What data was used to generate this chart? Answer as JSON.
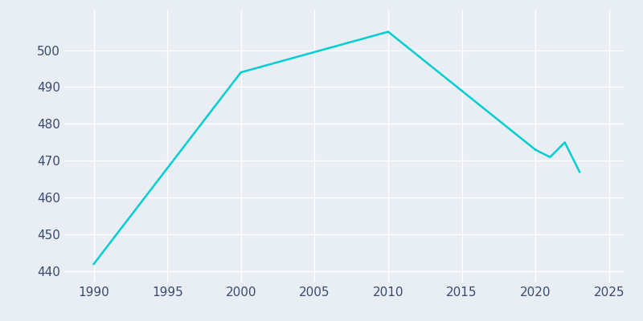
{
  "years": [
    1990,
    2000,
    2010,
    2020,
    2021,
    2022,
    2023
  ],
  "population": [
    442,
    494,
    505,
    473,
    471,
    475,
    467
  ],
  "line_color": "#00CED1",
  "bg_color": "#E8EEF4",
  "grid_color": "#FFFFFF",
  "tick_color": "#3a4a6e",
  "xlim": [
    1988,
    2026
  ],
  "ylim": [
    437,
    511
  ],
  "yticks": [
    440,
    450,
    460,
    470,
    480,
    490,
    500
  ],
  "xticks": [
    1990,
    1995,
    2000,
    2005,
    2010,
    2015,
    2020,
    2025
  ],
  "line_width": 1.8,
  "tick_fontsize": 11
}
